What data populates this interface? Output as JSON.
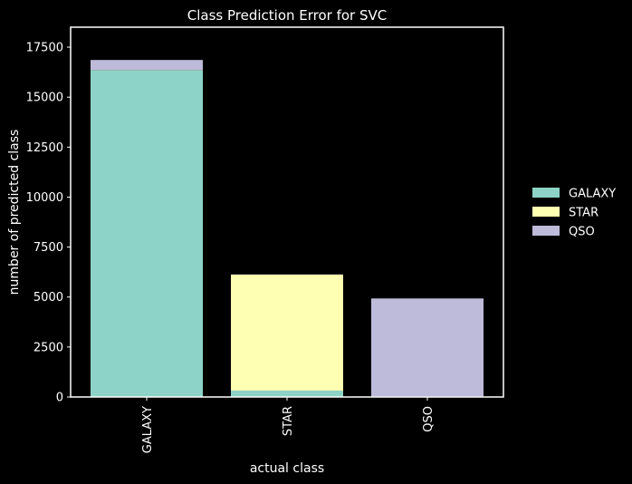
{
  "chart_data": {
    "type": "bar",
    "stacked": true,
    "title": "Class Prediction Error for SVC",
    "xlabel": "actual class",
    "ylabel": "number of predicted class",
    "categories": [
      "GALAXY",
      "STAR",
      "QSO"
    ],
    "ylim": [
      0,
      18500
    ],
    "yticks": [
      0,
      2500,
      5000,
      7500,
      10000,
      12500,
      15000,
      17500
    ],
    "series": [
      {
        "name": "GALAXY",
        "color": "#8dd3c7",
        "values": [
          16350,
          320,
          30
        ]
      },
      {
        "name": "STAR",
        "color": "#ffffb3",
        "values": [
          10,
          5800,
          0
        ]
      },
      {
        "name": "QSO",
        "color": "#bebada",
        "values": [
          500,
          10,
          4900
        ]
      }
    ],
    "legend_position": "right",
    "grid": false,
    "background": "#000000",
    "foreground": "#ffffff"
  }
}
